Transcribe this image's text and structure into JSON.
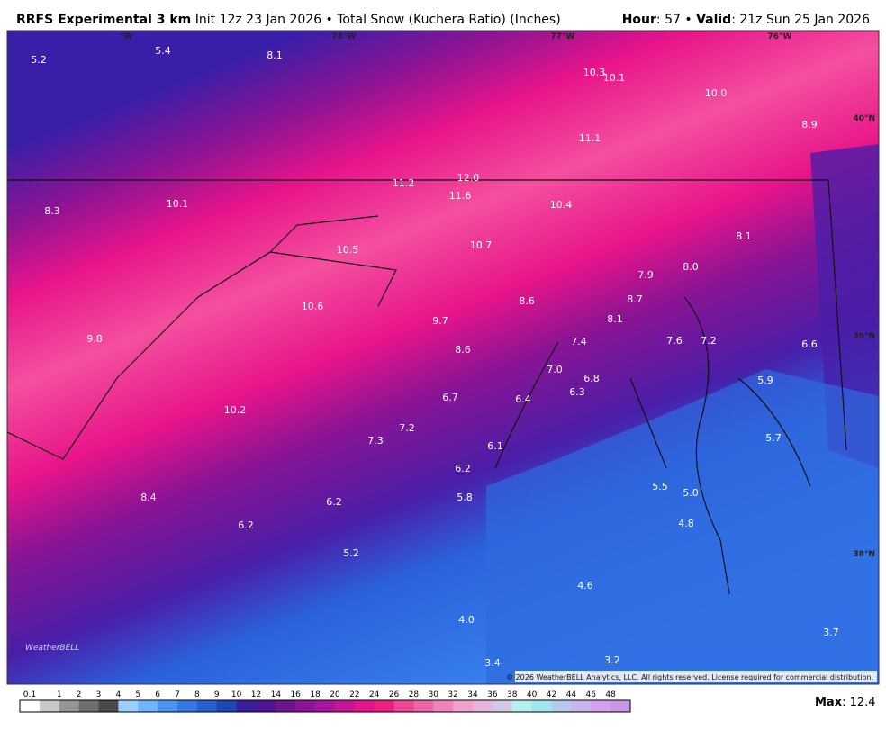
{
  "header": {
    "model": "RRFS Experimental 3 km",
    "info": "Init 12z 23 Jan 2026 • Total Snow (Kuchera Ratio) (Inches)",
    "hour_label": "Hour",
    "hour": ": 57 • ",
    "valid_label": "Valid",
    "valid": ": 21z Sun 25 Jan 2026"
  },
  "map": {
    "lon_labels": [
      "°W",
      "78°W",
      "77°W",
      "76°W"
    ],
    "lat_labels": [
      "40°N",
      "39°N",
      "38°N"
    ],
    "point_labels": [
      "5.2",
      "5.4",
      "8.1",
      "10.3",
      "10.1",
      "10.0",
      "8.9",
      "11.1",
      "12.0",
      "11.2",
      "11.6",
      "10.4",
      "10.1",
      "8.3",
      "8.1",
      "10.5",
      "10.7",
      "8.0",
      "7.9",
      "8.7",
      "8.6",
      "10.6",
      "9.7",
      "8.1",
      "9.8",
      "7.4",
      "7.6",
      "7.2",
      "6.6",
      "8.6",
      "7.0",
      "6.8",
      "5.9",
      "6.3",
      "6.7",
      "6.4",
      "10.2",
      "7.2",
      "7.3",
      "5.7",
      "6.1",
      "6.2",
      "5.5",
      "5.0",
      "8.4",
      "5.8",
      "6.2",
      "4.8",
      "6.2",
      "5.2",
      "4.6",
      "4.0",
      "3.7",
      "3.4",
      "3.2"
    ],
    "copyright": "© 2026 WeatherBELL Analytics, LLC. All rights reserved. License required for commercial distribution.",
    "logo": "WeatherBELL"
  },
  "colorbar": {
    "labels": [
      "0.1",
      "1",
      "2",
      "3",
      "4",
      "5",
      "6",
      "7",
      "8",
      "9",
      "10",
      "12",
      "14",
      "16",
      "18",
      "20",
      "22",
      "24",
      "26",
      "28",
      "30",
      "32",
      "34",
      "36",
      "38",
      "40",
      "42",
      "44",
      "46",
      "48"
    ],
    "colors": [
      "#ffffff",
      "#c8c8c8",
      "#969696",
      "#6e6e6e",
      "#4a4a4a",
      "#9ad0ff",
      "#6eb4ff",
      "#4a96f5",
      "#3278e6",
      "#2860d2",
      "#1e46b4",
      "#3a1ea0",
      "#501496",
      "#6e148c",
      "#8c1496",
      "#aa14a0",
      "#c81496",
      "#e6148c",
      "#f01e82",
      "#f04696",
      "#f064aa",
      "#f082be",
      "#f0a0cc",
      "#e6b4dc",
      "#d2c8e6",
      "#b4f0f0",
      "#a0e6f0",
      "#b4c8f0",
      "#c8b4f0",
      "#d2a0f0",
      "#c896e6"
    ],
    "max_label": "Max",
    "max": ": 12.4"
  }
}
